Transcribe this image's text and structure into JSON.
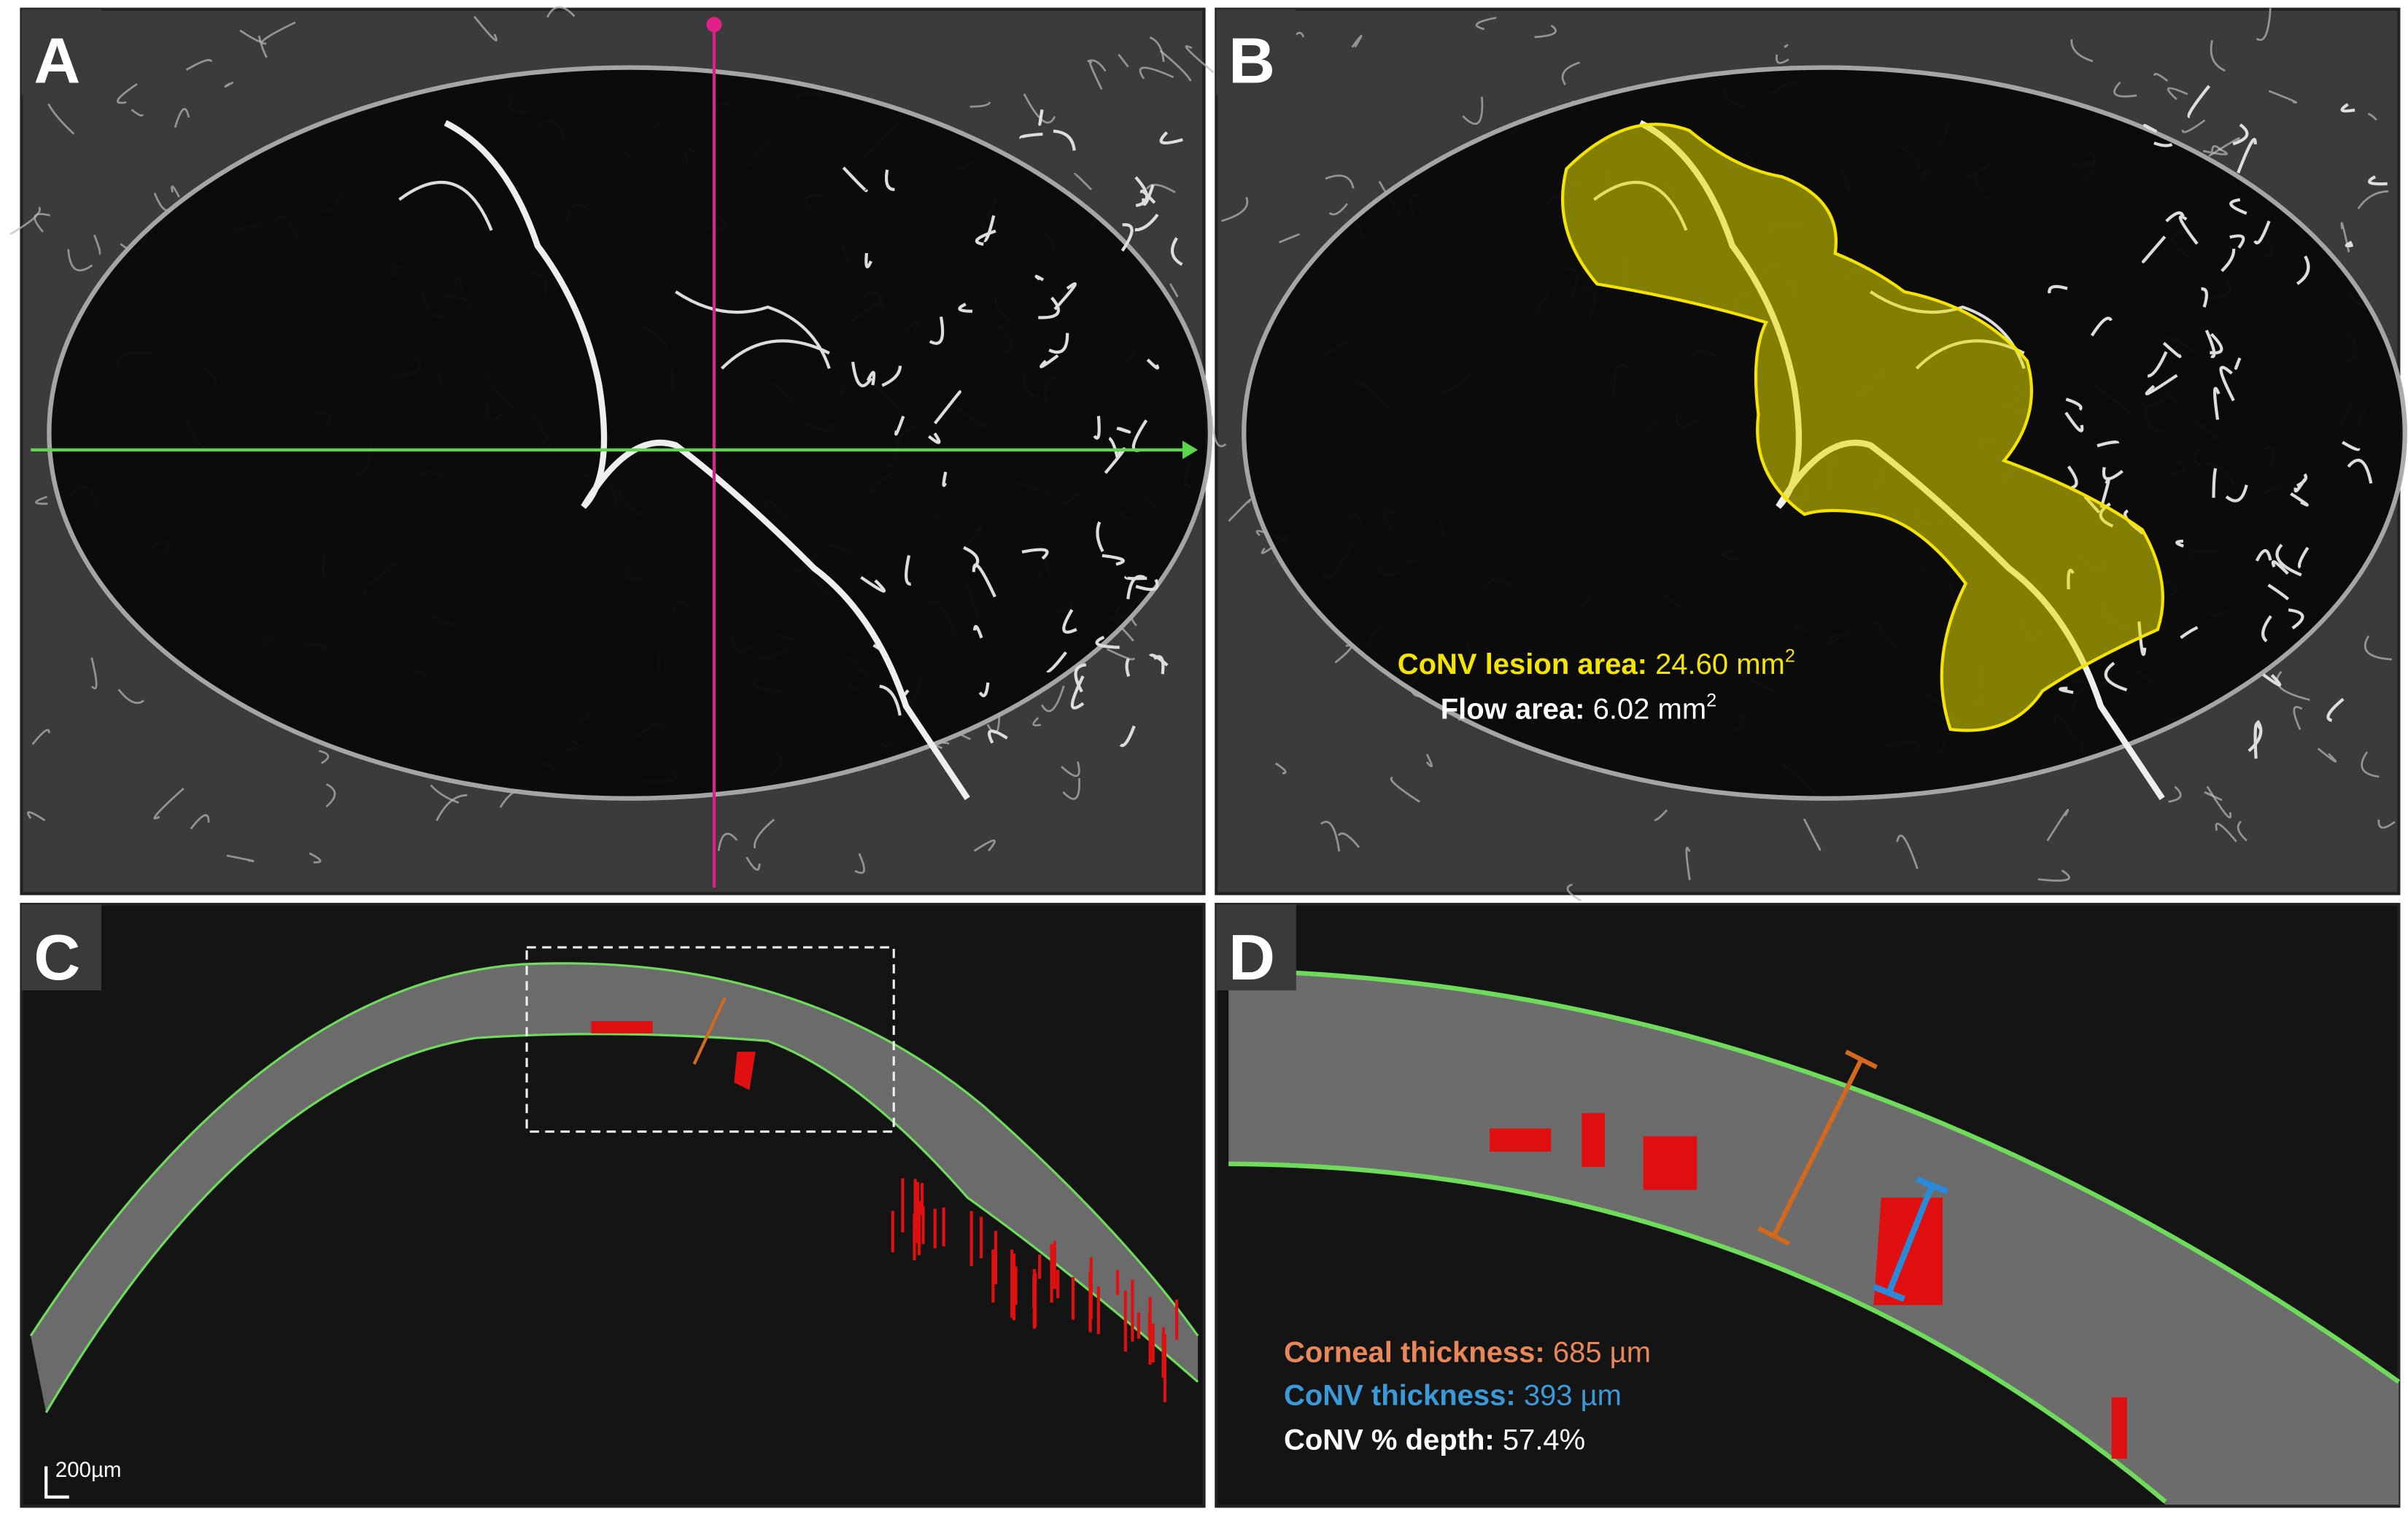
{
  "panels": [
    {
      "label": "A"
    },
    {
      "label": "B",
      "annotations": [
        {
          "label": "CoNV lesion area:",
          "value": "24.60 mm",
          "superscript": "2"
        },
        {
          "label": "Flow area:",
          "value": "6.02 mm",
          "superscript": "2"
        }
      ]
    },
    {
      "label": "C",
      "scale_bar": "200µm"
    },
    {
      "label": "D",
      "annotations": [
        {
          "label": "Corneal thickness:",
          "value": "685 µm"
        },
        {
          "label": "CoNV thickness:",
          "value": "393 µm"
        },
        {
          "label": "CoNV % depth:",
          "value": "57.4%"
        }
      ]
    }
  ]
}
